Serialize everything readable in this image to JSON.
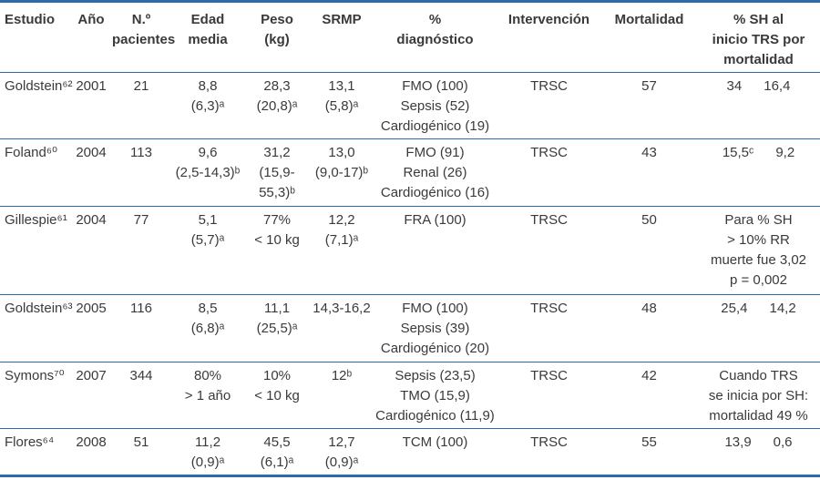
{
  "colors": {
    "rule": "#2b6aad",
    "text": "#3a3a3a"
  },
  "table": {
    "columns": [
      "Estudio",
      "Año",
      "N.º\npacientes",
      "Edad\nmedia",
      "Peso\n(kg)",
      "SRMP",
      "%\ndiagnóstico",
      "Intervención",
      "Mortalidad",
      "% SH al\ninicio TRS por\nmortalidad"
    ],
    "rows": [
      {
        "estudio": "Goldstein⁶²",
        "ano": "2001",
        "pacientes": "21",
        "edad": "8,8\n(6,3)ᵃ",
        "peso": "28,3\n(20,8)ᵃ",
        "srmp": "13,1\n(5,8)ᵃ",
        "diagnostico": "FMO (100)\nSepsis (52)\nCardiogénico (19)",
        "intervencion": "TRSC",
        "mortalidad": "57",
        "sh_pair": [
          "34",
          "16,4"
        ]
      },
      {
        "estudio": "Foland⁶⁰",
        "ano": "2004",
        "pacientes": "113",
        "edad": "9,6\n(2,5-14,3)ᵇ",
        "peso": "31,2\n(15,9-55,3)ᵇ",
        "srmp": "13,0\n(9,0-17)ᵇ",
        "diagnostico": "FMO (91)\nRenal (26)\nCardiogénico (16)",
        "intervencion": "TRSC",
        "mortalidad": "43",
        "sh_pair": [
          "15,5ᶜ",
          "9,2"
        ]
      },
      {
        "estudio": "Gillespie⁶¹",
        "ano": "2004",
        "pacientes": "77",
        "edad": "5,1\n(5,7)ᵃ",
        "peso": "77%\n< 10 kg",
        "srmp": "12,2\n(7,1)ᵃ",
        "diagnostico": "FRA (100)",
        "intervencion": "TRSC",
        "mortalidad": "50",
        "sh_text": "Para % SH\n> 10% RR\nmuerte fue 3,02\np = 0,002"
      },
      {
        "estudio": "Goldstein⁶³",
        "ano": "2005",
        "pacientes": "116",
        "edad": "8,5\n(6,8)ᵃ",
        "peso": "11,1\n(25,5)ᵃ",
        "srmp": "14,3-16,2",
        "diagnostico": "FMO (100)\nSepsis (39)\nCardiogénico (20)",
        "intervencion": "TRSC",
        "mortalidad": "48",
        "sh_pair": [
          "25,4",
          "14,2"
        ]
      },
      {
        "estudio": "Symons⁷⁰",
        "ano": "2007",
        "pacientes": "344",
        "edad": "80%\n> 1 año",
        "peso": "10%\n< 10 kg",
        "srmp": "12ᵇ",
        "diagnostico": "Sepsis (23,5)\nTMO (15,9)\nCardiogénico (11,9)",
        "intervencion": "TRSC",
        "mortalidad": "42",
        "sh_text": "Cuando TRS\nse inicia por SH:\nmortalidad 49 %"
      },
      {
        "estudio": "Flores⁶⁴",
        "ano": "2008",
        "pacientes": "51",
        "edad": "11,2\n(0,9)ᵃ",
        "peso": "45,5\n(6,1)ᵃ",
        "srmp": "12,7\n(0,9)ᵃ",
        "diagnostico": "TCM (100)",
        "intervencion": "TRSC",
        "mortalidad": "55",
        "sh_pair": [
          "13,9",
          "0,6"
        ]
      }
    ]
  }
}
